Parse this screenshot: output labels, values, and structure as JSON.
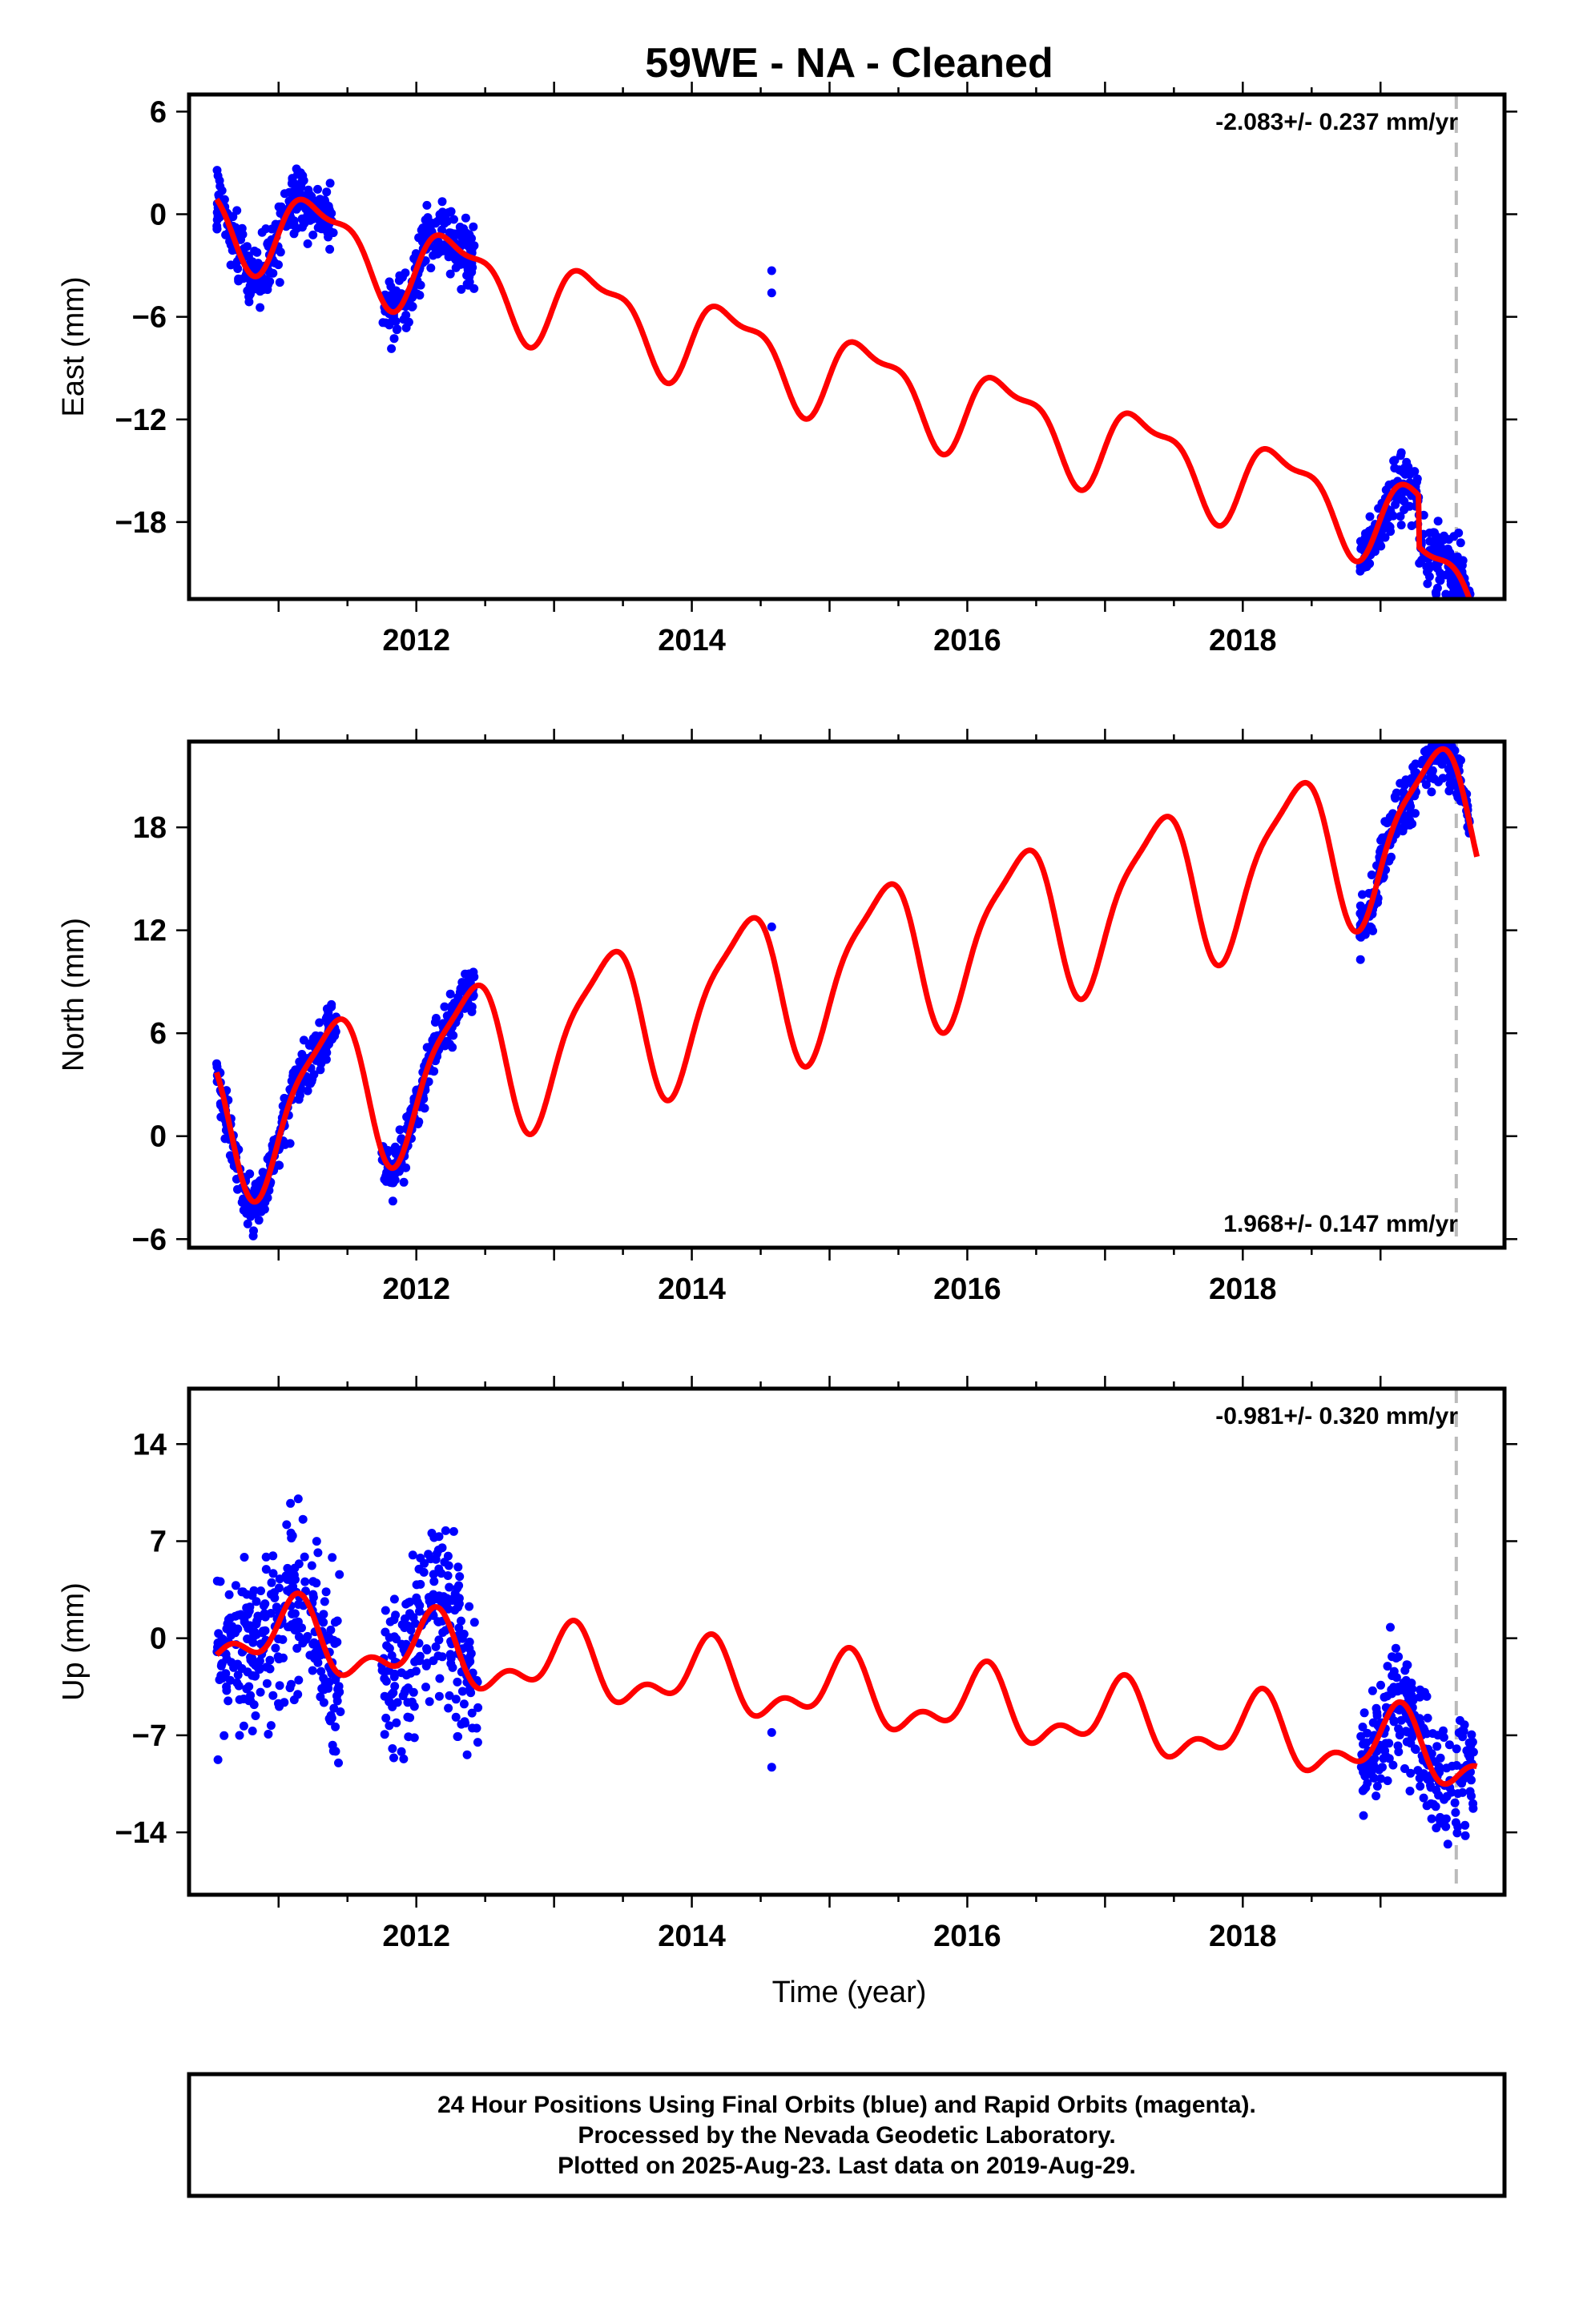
{
  "title": "59WE  - NA - Cleaned",
  "footer": {
    "line1": "24 Hour Positions Using Final Orbits (blue) and Rapid Orbits (magenta).",
    "line2": "Processed by the Nevada Geodetic Laboratory.",
    "line3": "Plotted on 2025-Aug-23. Last data on 2019-Aug-29."
  },
  "colors": {
    "data": "#0000ff",
    "model": "#ff0000",
    "frame": "#000000",
    "marker_line": "#bbbbbb"
  },
  "chart_data": [
    {
      "type": "scatter",
      "component": "east",
      "ylabel": "East (mm)",
      "xlabel": "",
      "rate": "-2.083+/- 0.237 mm/yr",
      "rate_position": "top-right",
      "xlim": [
        2010.35,
        2019.9
      ],
      "ylim": [
        -22.5,
        7
      ],
      "x_ticks": [
        2012,
        2014,
        2016,
        2018
      ],
      "y_ticks": [
        6,
        0,
        -6,
        -12,
        -18
      ],
      "marker_x": 2019.55,
      "model": {
        "slope": -2.083,
        "intercept": 0.2,
        "annual_sin": 2.2,
        "annual_cos": -0.7,
        "semi_sin": 0.8,
        "semi_cos": 0.4,
        "offsets": [
          {
            "x": 2019.28,
            "dy": -3.0
          }
        ]
      },
      "data_segments": [
        {
          "x": [
            2010.55,
            2011.4
          ],
          "scatter": 1.4
        },
        {
          "x": [
            2011.75,
            2012.42
          ],
          "scatter": 1.4
        },
        {
          "x": [
            2018.85,
            2019.65
          ],
          "scatter": 1.3
        }
      ],
      "outliers": [
        {
          "x": 2014.58,
          "y": -3.3
        },
        {
          "x": 2014.58,
          "y": -4.6
        }
      ]
    },
    {
      "type": "scatter",
      "component": "north",
      "ylabel": "North (mm)",
      "xlabel": "",
      "rate": "1.968+/- 0.147 mm/yr",
      "rate_position": "bottom-right",
      "xlim": [
        2010.35,
        2019.9
      ],
      "ylim": [
        -6.5,
        23
      ],
      "x_ticks": [
        2012,
        2014,
        2016,
        2018
      ],
      "y_ticks": [
        18,
        12,
        6,
        0,
        -6
      ],
      "marker_x": 2019.55,
      "model": {
        "slope": 1.968,
        "intercept": 0.8,
        "annual_sin": 3.3,
        "annual_cos": -2.9,
        "semi_sin": 0.6,
        "semi_cos": 0.9,
        "offsets": []
      },
      "data_segments": [
        {
          "x": [
            2010.55,
            2011.42
          ],
          "scatter": 1.1
        },
        {
          "x": [
            2011.75,
            2012.42
          ],
          "scatter": 1.0
        },
        {
          "x": [
            2018.85,
            2019.65
          ],
          "scatter": 1.2
        }
      ],
      "outliers": [
        {
          "x": 2014.58,
          "y": 12.2
        }
      ]
    },
    {
      "type": "scatter",
      "component": "up",
      "ylabel": "Up (mm)",
      "xlabel": "Time (year)",
      "rate": "-0.981+/- 0.320 mm/yr",
      "rate_position": "top-right",
      "xlim": [
        2010.35,
        2019.9
      ],
      "ylim": [
        -18.5,
        18
      ],
      "x_ticks": [
        2012,
        2014,
        2016,
        2018
      ],
      "y_ticks": [
        14,
        7,
        0,
        -7,
        -14
      ],
      "marker_x": 2019.55,
      "model": {
        "slope": -0.981,
        "intercept": 0.5,
        "annual_sin": 1.4,
        "annual_cos": 1.6,
        "semi_sin": 1.2,
        "semi_cos": -0.5,
        "offsets": []
      },
      "data_segments": [
        {
          "x": [
            2010.55,
            2011.45
          ],
          "scatter": 4.2
        },
        {
          "x": [
            2011.75,
            2012.45
          ],
          "scatter": 4.2
        },
        {
          "x": [
            2018.85,
            2019.68
          ],
          "scatter": 3.0
        }
      ],
      "outliers": [
        {
          "x": 2014.58,
          "y": -6.8
        },
        {
          "x": 2014.58,
          "y": -9.3
        }
      ]
    }
  ]
}
